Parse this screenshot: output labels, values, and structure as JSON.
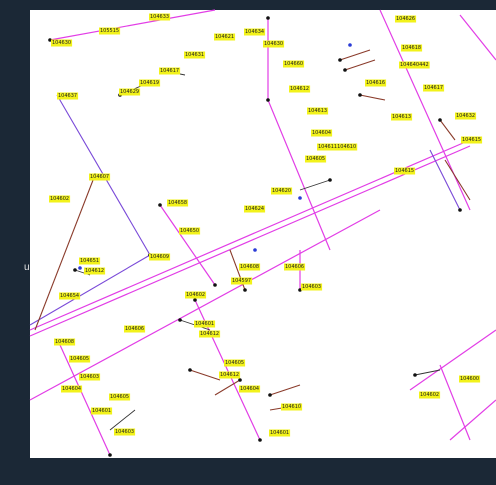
{
  "side_panel": {
    "letter": "u"
  },
  "map": {
    "labels": [
      "105515",
      "104633",
      "104630",
      "104631",
      "104621",
      "104634",
      "104630",
      "104617",
      "104619",
      "104629",
      "104637",
      "104660",
      "104612",
      "104613",
      "104626",
      "104618",
      "104640442",
      "104616",
      "104617",
      "104613",
      "104632",
      "104615",
      "104604",
      "104611104610",
      "104605",
      "104607",
      "104602",
      "104658",
      "104620",
      "104624",
      "104615",
      "104650",
      "104651",
      "104612",
      "104654",
      "104609",
      "104608",
      "104597",
      "104606",
      "104603",
      "104602",
      "104606",
      "104601",
      "104612",
      "104608",
      "104605",
      "104603",
      "104604",
      "104605",
      "104612",
      "104604",
      "104601",
      "104605",
      "104610",
      "104603",
      "104601",
      "104600",
      "104602"
    ]
  }
}
